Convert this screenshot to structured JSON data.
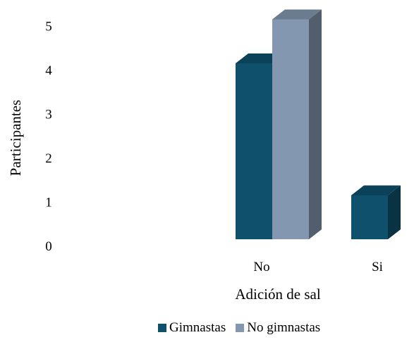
{
  "chart_data": {
    "type": "bar",
    "categories": [
      "No",
      "Si"
    ],
    "series": [
      {
        "name": "Gimnastas",
        "values": [
          4,
          1
        ],
        "color": "#0f506c"
      },
      {
        "name": "No gimnastas",
        "values": [
          5,
          0
        ],
        "color": "#8497b0"
      }
    ],
    "title": "",
    "xlabel": "Adición de sal",
    "ylabel": "Participantes",
    "ylim": [
      0,
      5
    ],
    "yticks": [
      "0",
      "1",
      "2",
      "3",
      "4",
      "5"
    ],
    "grid": false,
    "legend_position": "bottom",
    "style": "3d-bar"
  }
}
